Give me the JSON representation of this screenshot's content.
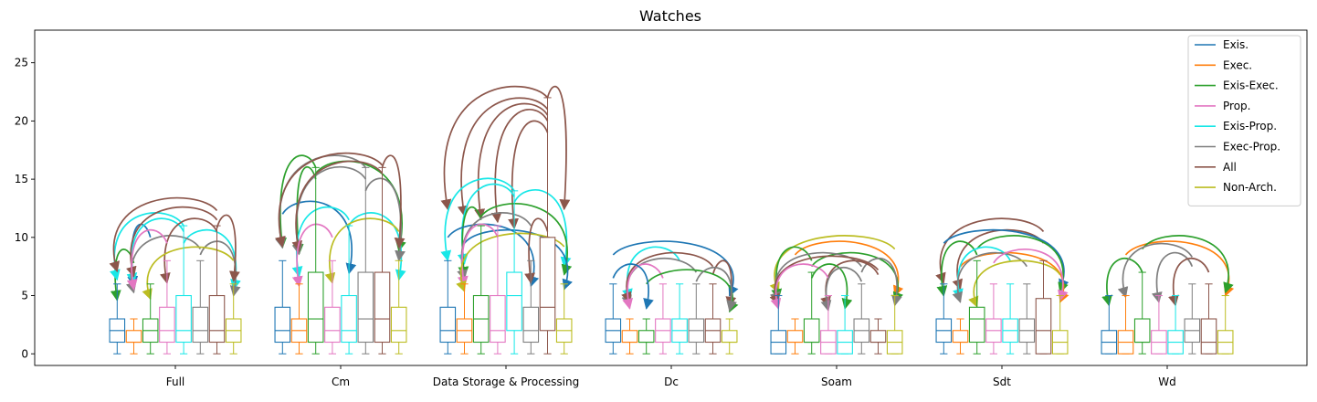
{
  "chart_data": {
    "type": "boxplot",
    "title": "Watches",
    "xlabel": "",
    "ylabel": "",
    "ylim": [
      -1,
      27.8
    ],
    "yticks": [
      0,
      5,
      10,
      15,
      20,
      25
    ],
    "legend_position": "top-right",
    "categories": [
      "Full",
      "Cm",
      "Data Storage & Processing",
      "Dc",
      "Soam",
      "Sdt",
      "Wd"
    ],
    "series": [
      {
        "name": "Exis.",
        "color": "#1f77b4",
        "boxes": [
          {
            "whislo": 0,
            "q1": 1,
            "med": 2,
            "q3": 3,
            "whishi": 6
          },
          {
            "whislo": 0,
            "q1": 1,
            "med": 2,
            "q3": 4,
            "whishi": 8
          },
          {
            "whislo": 0,
            "q1": 1,
            "med": 2,
            "q3": 4,
            "whishi": 8
          },
          {
            "whislo": 0,
            "q1": 1,
            "med": 2,
            "q3": 3,
            "whishi": 6
          },
          {
            "whislo": 0,
            "q1": 0,
            "med": 1,
            "q3": 2,
            "whishi": 5
          },
          {
            "whislo": 0,
            "q1": 1,
            "med": 2,
            "q3": 3,
            "whishi": 6
          },
          {
            "whislo": 0,
            "q1": 0,
            "med": 1,
            "q3": 2,
            "whishi": 5
          }
        ]
      },
      {
        "name": "Exec.",
        "color": "#ff7f0e",
        "boxes": [
          {
            "whislo": 0,
            "q1": 1,
            "med": 1,
            "q3": 2,
            "whishi": 3
          },
          {
            "whislo": 0,
            "q1": 1,
            "med": 2,
            "q3": 3,
            "whishi": 6
          },
          {
            "whislo": 0,
            "q1": 1,
            "med": 2,
            "q3": 3,
            "whishi": 6
          },
          {
            "whislo": 0,
            "q1": 1,
            "med": 1,
            "q3": 2,
            "whishi": 3
          },
          {
            "whislo": 0,
            "q1": 1,
            "med": 1,
            "q3": 2,
            "whishi": 3
          },
          {
            "whislo": 0,
            "q1": 1,
            "med": 1,
            "q3": 2,
            "whishi": 3
          },
          {
            "whislo": 0,
            "q1": 0,
            "med": 1,
            "q3": 2,
            "whishi": 5
          }
        ]
      },
      {
        "name": "Exis-Exec.",
        "color": "#2ca02c",
        "boxes": [
          {
            "whislo": 0,
            "q1": 1,
            "med": 2,
            "q3": 3,
            "whishi": 6
          },
          {
            "whislo": 0,
            "q1": 1,
            "med": 3,
            "q3": 7,
            "whishi": 16
          },
          {
            "whislo": 0,
            "q1": 1,
            "med": 3,
            "q3": 5,
            "whishi": 11
          },
          {
            "whislo": 0,
            "q1": 1,
            "med": 1,
            "q3": 2,
            "whishi": 3
          },
          {
            "whislo": 0,
            "q1": 1,
            "med": 1,
            "q3": 3,
            "whishi": 7
          },
          {
            "whislo": 0,
            "q1": 1,
            "med": 3,
            "q3": 4,
            "whishi": 8
          },
          {
            "whislo": 0,
            "q1": 1,
            "med": 1,
            "q3": 3,
            "whishi": 7
          }
        ]
      },
      {
        "name": "Prop.",
        "color": "#e377c2",
        "boxes": [
          {
            "whislo": 0,
            "q1": 1,
            "med": 2,
            "q3": 4,
            "whishi": 8
          },
          {
            "whislo": 0,
            "q1": 1,
            "med": 2,
            "q3": 4,
            "whishi": 8
          },
          {
            "whislo": 0,
            "q1": 1,
            "med": 2,
            "q3": 5,
            "whishi": 11
          },
          {
            "whislo": 0,
            "q1": 1,
            "med": 2,
            "q3": 3,
            "whishi": 6
          },
          {
            "whislo": 0,
            "q1": 0,
            "med": 1,
            "q3": 2,
            "whishi": 5
          },
          {
            "whislo": 0,
            "q1": 1,
            "med": 2,
            "q3": 3,
            "whishi": 6
          },
          {
            "whislo": 0,
            "q1": 0,
            "med": 1,
            "q3": 2,
            "whishi": 5
          }
        ]
      },
      {
        "name": "Exis-Prop.",
        "color": "#17e7e7",
        "boxes": [
          {
            "whislo": 0,
            "q1": 1,
            "med": 2,
            "q3": 5,
            "whishi": 11
          },
          {
            "whislo": 0,
            "q1": 1,
            "med": 2,
            "q3": 5,
            "whishi": 11
          },
          {
            "whislo": 0,
            "q1": 2,
            "med": 5,
            "q3": 7,
            "whishi": 14
          },
          {
            "whislo": 0,
            "q1": 1,
            "med": 2,
            "q3": 3,
            "whishi": 6
          },
          {
            "whislo": 0,
            "q1": 0,
            "med": 1,
            "q3": 2,
            "whishi": 5
          },
          {
            "whislo": 0,
            "q1": 1,
            "med": 2,
            "q3": 3,
            "whishi": 6
          },
          {
            "whislo": 0,
            "q1": 0,
            "med": 1,
            "q3": 2,
            "whishi": 5
          }
        ]
      },
      {
        "name": "Exec-Prop.",
        "color": "#7f7f7f",
        "boxes": [
          {
            "whislo": 0,
            "q1": 1,
            "med": 2,
            "q3": 4,
            "whishi": 8
          },
          {
            "whislo": 0,
            "q1": 1,
            "med": 3,
            "q3": 7,
            "whishi": 16
          },
          {
            "whislo": 0,
            "q1": 1,
            "med": 2,
            "q3": 4,
            "whishi": 8
          },
          {
            "whislo": 0,
            "q1": 1,
            "med": 2,
            "q3": 3,
            "whishi": 6
          },
          {
            "whislo": 0,
            "q1": 1,
            "med": 2,
            "q3": 3,
            "whishi": 6
          },
          {
            "whislo": 0,
            "q1": 1,
            "med": 2,
            "q3": 3,
            "whishi": 6
          },
          {
            "whislo": 0,
            "q1": 1,
            "med": 2,
            "q3": 3,
            "whishi": 6
          }
        ]
      },
      {
        "name": "All",
        "color": "#8c564b",
        "boxes": [
          {
            "whislo": 0,
            "q1": 1,
            "med": 2,
            "q3": 5,
            "whishi": 11
          },
          {
            "whislo": 0,
            "q1": 1,
            "med": 3,
            "q3": 7,
            "whishi": 16
          },
          {
            "whislo": 0,
            "q1": 2,
            "med": 4,
            "q3": 10,
            "whishi": 22
          },
          {
            "whislo": 0,
            "q1": 1,
            "med": 2,
            "q3": 3,
            "whishi": 6
          },
          {
            "whislo": 0,
            "q1": 1,
            "med": 1,
            "q3": 2,
            "whishi": 3
          },
          {
            "whislo": 0,
            "q1": 0,
            "med": 2,
            "q3": 4.75,
            "whishi": 8
          },
          {
            "whislo": 0,
            "q1": 0,
            "med": 1,
            "q3": 3,
            "whishi": 6
          }
        ]
      },
      {
        "name": "Non-Arch.",
        "color": "#bcbd22",
        "boxes": [
          {
            "whislo": 0,
            "q1": 1,
            "med": 2,
            "q3": 3,
            "whishi": 6
          },
          {
            "whislo": 0,
            "q1": 1,
            "med": 2,
            "q3": 4,
            "whishi": 8
          },
          {
            "whislo": 0,
            "q1": 1,
            "med": 2,
            "q3": 3,
            "whishi": 6
          },
          {
            "whislo": 0,
            "q1": 1,
            "med": 1,
            "q3": 2,
            "whishi": 3
          },
          {
            "whislo": 0,
            "q1": 0,
            "med": 1,
            "q3": 2,
            "whishi": 5
          },
          {
            "whislo": 0,
            "q1": 0,
            "med": 1,
            "q3": 2,
            "whishi": 5
          },
          {
            "whislo": 0,
            "q1": 0,
            "med": 1,
            "q3": 2,
            "whishi": 5
          }
        ]
      }
    ],
    "significance_arcs": [
      {
        "category": 0,
        "arcs": [
          [
            1,
            0,
            "#2ca02c",
            7.8
          ],
          [
            2,
            1,
            "#1f77b4",
            10
          ],
          [
            4,
            0,
            "#17e7e7",
            11
          ],
          [
            4,
            1,
            "#17e7e7",
            10.5
          ],
          [
            4,
            7,
            "#17e7e7",
            9.5
          ],
          [
            5,
            1,
            "#7f7f7f",
            9
          ],
          [
            5,
            7,
            "#7f7f7f",
            8.5
          ],
          [
            6,
            0,
            "#8c564b",
            12.3
          ],
          [
            6,
            1,
            "#8c564b",
            11.5
          ],
          [
            6,
            3,
            "#8c564b",
            10.5
          ],
          [
            6,
            7,
            "#8c564b",
            10.8
          ],
          [
            3,
            1,
            "#e377c2",
            9.5
          ],
          [
            7,
            2,
            "#bcbd22",
            8
          ]
        ]
      },
      {
        "category": 1,
        "arcs": [
          [
            2,
            0,
            "#2ca02c",
            16
          ],
          [
            2,
            1,
            "#2ca02c",
            15
          ],
          [
            2,
            7,
            "#2ca02c",
            15.5
          ],
          [
            0,
            4,
            "#1f77b4",
            12
          ],
          [
            4,
            1,
            "#17e7e7",
            11.5
          ],
          [
            4,
            7,
            "#17e7e7",
            11
          ],
          [
            5,
            0,
            "#7f7f7f",
            16
          ],
          [
            5,
            1,
            "#7f7f7f",
            15
          ],
          [
            5,
            7,
            "#7f7f7f",
            14
          ],
          [
            6,
            0,
            "#8c564b",
            16.2
          ],
          [
            6,
            1,
            "#8c564b",
            15.5
          ],
          [
            6,
            7,
            "#8c564b",
            16
          ],
          [
            3,
            1,
            "#e377c2",
            10
          ],
          [
            7,
            3,
            "#bcbd22",
            10.5
          ]
        ]
      },
      {
        "category": 2,
        "arcs": [
          [
            6,
            0,
            "#8c564b",
            22
          ],
          [
            6,
            1,
            "#8c564b",
            21
          ],
          [
            6,
            2,
            "#8c564b",
            20.5
          ],
          [
            6,
            3,
            "#8c564b",
            20
          ],
          [
            6,
            4,
            "#8c564b",
            19
          ],
          [
            6,
            7,
            "#8c564b",
            22
          ],
          [
            4,
            0,
            "#17e7e7",
            14
          ],
          [
            4,
            1,
            "#17e7e7",
            13.5
          ],
          [
            4,
            7,
            "#17e7e7",
            13
          ],
          [
            2,
            1,
            "#2ca02c",
            11.5
          ],
          [
            2,
            7,
            "#2ca02c",
            11.8
          ],
          [
            0,
            5,
            "#1f77b4",
            10
          ],
          [
            1,
            7,
            "#1f77b4",
            9.5
          ],
          [
            5,
            1,
            "#7f7f7f",
            11
          ],
          [
            3,
            1,
            "#e377c2",
            10
          ],
          [
            7,
            1,
            "#bcbd22",
            9.2
          ],
          [
            6,
            5,
            "#8c564b",
            10.5
          ]
        ]
      },
      {
        "category": 3,
        "arcs": [
          [
            0,
            7,
            "#1f77b4",
            8.5
          ],
          [
            4,
            1,
            "#17e7e7",
            8
          ],
          [
            5,
            1,
            "#7f7f7f",
            7
          ],
          [
            6,
            1,
            "#8c564b",
            7.5
          ],
          [
            6,
            7,
            "#8c564b",
            6.8
          ],
          [
            3,
            1,
            "#e377c2",
            6.5
          ],
          [
            2,
            7,
            "#2ca02c",
            6
          ],
          [
            0,
            2,
            "#1f77b4",
            6.5
          ],
          [
            5,
            7,
            "#7f7f7f",
            6.2
          ]
        ]
      },
      {
        "category": 4,
        "arcs": [
          [
            7,
            0,
            "#bcbd22",
            9
          ],
          [
            1,
            7,
            "#ff7f0e",
            8.5
          ],
          [
            2,
            0,
            "#2ca02c",
            8
          ],
          [
            2,
            7,
            "#2ca02c",
            7.5
          ],
          [
            5,
            0,
            "#7f7f7f",
            7.5
          ],
          [
            5,
            7,
            "#7f7f7f",
            7
          ],
          [
            6,
            0,
            "#8c564b",
            7.2
          ],
          [
            6,
            3,
            "#8c564b",
            6.8
          ],
          [
            3,
            0,
            "#e377c2",
            6.5
          ],
          [
            2,
            4,
            "#2ca02c",
            6.5
          ],
          [
            5,
            3,
            "#7f7f7f",
            6.2
          ]
        ]
      },
      {
        "category": 5,
        "arcs": [
          [
            6,
            0,
            "#8c564b",
            10.5
          ],
          [
            6,
            1,
            "#8c564b",
            9.5
          ],
          [
            0,
            7,
            "#1f77b4",
            9.5
          ],
          [
            2,
            0,
            "#2ca02c",
            8.5
          ],
          [
            2,
            7,
            "#2ca02c",
            9
          ],
          [
            1,
            7,
            "#ff7f0e",
            7.5
          ],
          [
            4,
            1,
            "#17e7e7",
            8
          ],
          [
            5,
            1,
            "#7f7f7f",
            7.5
          ],
          [
            3,
            7,
            "#e377c2",
            7.8
          ],
          [
            7,
            2,
            "#bcbd22",
            6.8
          ]
        ]
      },
      {
        "category": 6,
        "arcs": [
          [
            2,
            0,
            "#2ca02c",
            7
          ],
          [
            1,
            7,
            "#ff7f0e",
            8.5
          ],
          [
            2,
            7,
            "#2ca02c",
            9
          ],
          [
            5,
            1,
            "#7f7f7f",
            8.3
          ],
          [
            5,
            3,
            "#7f7f7f",
            7.5
          ],
          [
            6,
            4,
            "#8c564b",
            7
          ]
        ]
      }
    ]
  }
}
